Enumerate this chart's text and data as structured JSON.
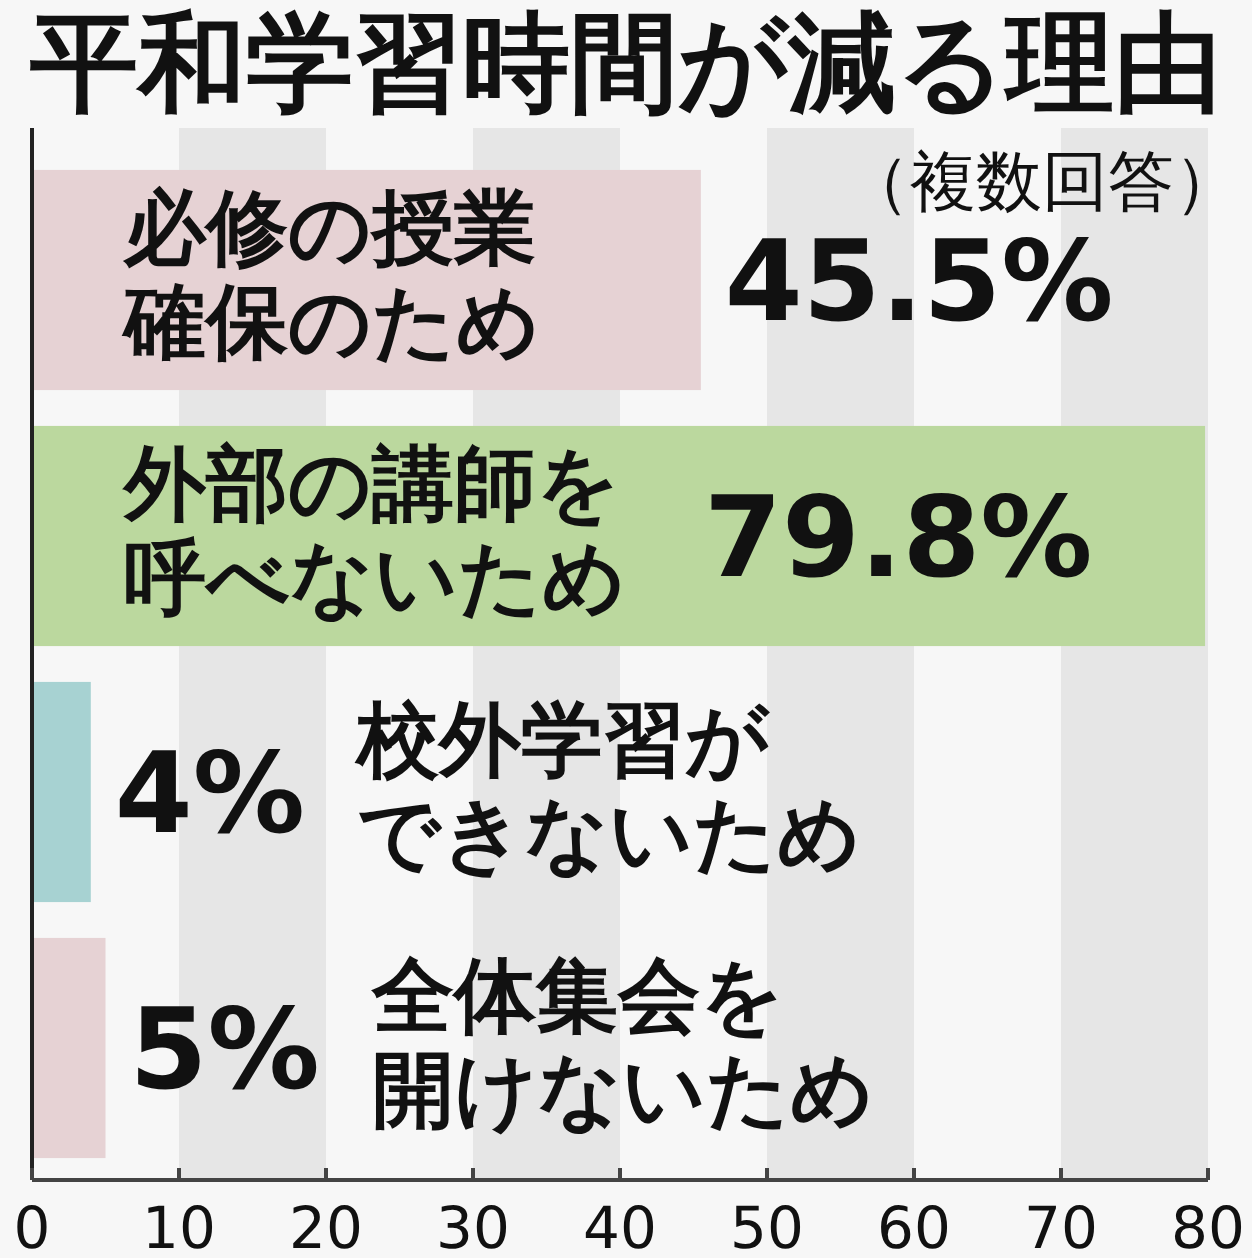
{
  "chart_data": {
    "type": "bar",
    "orientation": "horizontal",
    "title": "平和学習時間が減る理由",
    "subtitle": "（複数回答）",
    "categories": [
      "必修の授業確保のため",
      "外部の講師を呼べないため",
      "校外学習ができないため",
      "全体集会を開けないため"
    ],
    "values": [
      45.5,
      79.8,
      4,
      5
    ],
    "colors": [
      "#e6d2d4",
      "#bbd89e",
      "#a7d2d2",
      "#e6d2d4"
    ],
    "value_labels": [
      "45.5%",
      "79.8%",
      "4%",
      "5%"
    ],
    "xlim": [
      0,
      80
    ],
    "xticks": [
      0,
      10,
      20,
      30,
      40,
      50,
      60,
      70,
      80
    ],
    "bands": [
      {
        "axis": "x",
        "from": 10,
        "to": 20,
        "color": "#e6e6e6"
      },
      {
        "axis": "x",
        "from": 30,
        "to": 40,
        "color": "#e6e6e6"
      },
      {
        "axis": "x",
        "from": 50,
        "to": 60,
        "color": "#e6e6e6"
      },
      {
        "axis": "x",
        "from": 70,
        "to": 80,
        "color": "#e6e6e6"
      }
    ]
  }
}
